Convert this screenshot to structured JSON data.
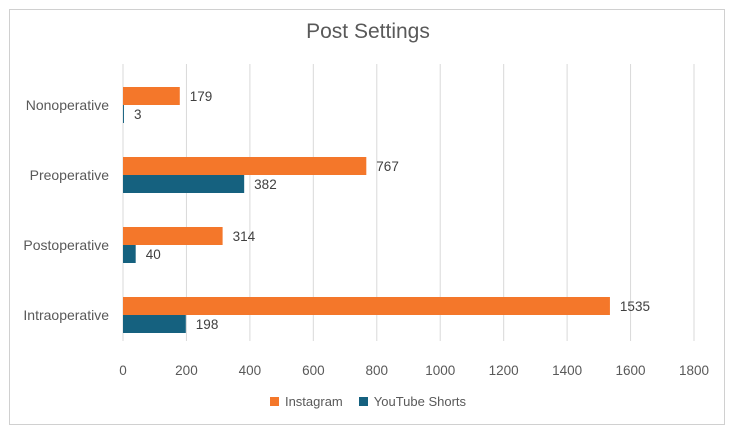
{
  "chart_data": {
    "type": "bar",
    "orientation": "horizontal",
    "title": "Post Settings",
    "categories": [
      "Nonoperative",
      "Preoperative",
      "Postoperative",
      "Intraoperative"
    ],
    "series": [
      {
        "name": "Instagram",
        "color": "#F4772A",
        "values": [
          179,
          767,
          314,
          1535
        ]
      },
      {
        "name": "YouTube Shorts",
        "color": "#15617F",
        "values": [
          3,
          382,
          40,
          198
        ]
      }
    ],
    "xlim": [
      0,
      1800
    ],
    "xticks": [
      "0",
      "200",
      "400",
      "600",
      "800",
      "1000",
      "1200",
      "1400",
      "1600",
      "1800"
    ],
    "grid": true,
    "legend": "bottom",
    "xlabel": "",
    "ylabel": ""
  }
}
